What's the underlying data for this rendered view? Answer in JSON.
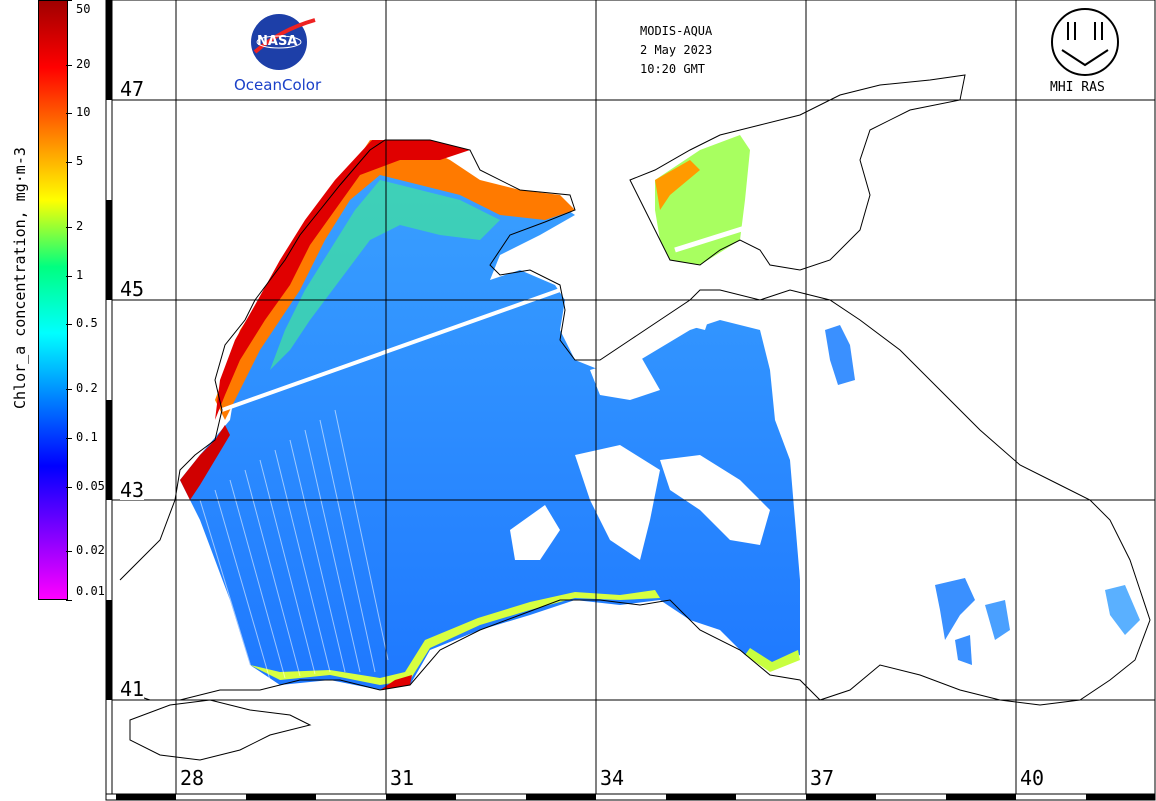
{
  "header": {
    "satellite": "MODIS-AQUA",
    "date": "2 May 2023",
    "time": "10:20 GMT"
  },
  "logos": {
    "nasa_text": "NASA",
    "oceancolor_text": "OceanColor",
    "mhi_text": "MHI RAS"
  },
  "colorbar": {
    "title": "Chlor_a concentration, mg·m-3",
    "scale": "log",
    "range": [
      0.01,
      50
    ],
    "ticks": [
      "50",
      "20",
      "10",
      "5",
      "2",
      "1",
      "0.5",
      "0.2",
      "0.1",
      "0.05",
      "0.02",
      "0.01"
    ],
    "colors": [
      "#ff00ff",
      "#7f00ff",
      "#0000ff",
      "#0080ff",
      "#00ffff",
      "#00ff80",
      "#ffff00",
      "#ff8000",
      "#ff0000",
      "#a00000"
    ]
  },
  "grid": {
    "latitudes": [
      "47",
      "45",
      "43",
      "41"
    ],
    "longitudes": [
      "28",
      "31",
      "34",
      "37",
      "40"
    ]
  }
}
